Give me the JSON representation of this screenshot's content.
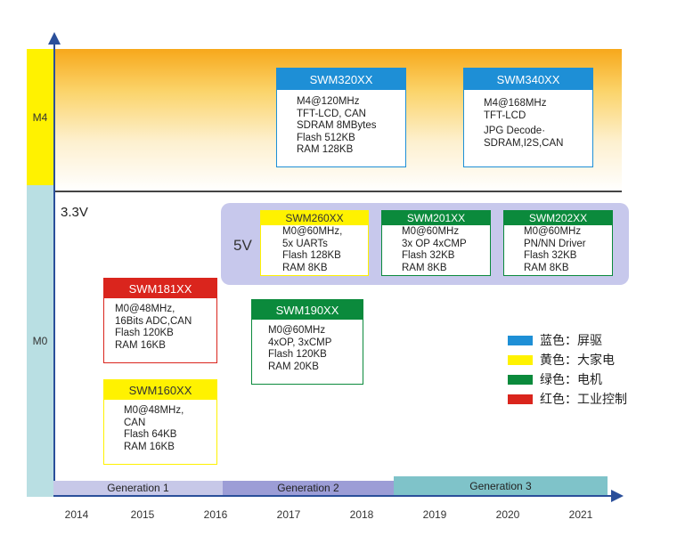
{
  "cores": {
    "m4": "M4",
    "m0": "M0"
  },
  "voltages": {
    "v33": "3.3V",
    "v5": "5V"
  },
  "chips": [
    {
      "id": "swm320",
      "name": "SWM320XX",
      "color": "blue",
      "specs": [
        "M4@120MHz",
        "TFT-LCD, CAN",
        "SDRAM 8MBytes",
        "Flash 512KB",
        "RAM 128KB"
      ]
    },
    {
      "id": "swm340",
      "name": "SWM340XX",
      "color": "blue",
      "specs": [
        "M4@168MHz",
        "TFT-LCD",
        "JPG Decode·",
        "SDRAM,I2S,CAN"
      ]
    },
    {
      "id": "swm260",
      "name": "SWM260XX",
      "color": "yellow",
      "specs": [
        "M0@60MHz,",
        "5x UARTs",
        "Flash 128KB",
        "RAM 8KB"
      ]
    },
    {
      "id": "swm201",
      "name": "SWM201XX",
      "color": "green",
      "specs": [
        "M0@60MHz",
        "3x OP 4xCMP",
        "Flash 32KB",
        "RAM 8KB"
      ]
    },
    {
      "id": "swm202",
      "name": "SWM202XX",
      "color": "green",
      "specs": [
        "M0@60MHz",
        "PN/NN Driver",
        "Flash 32KB",
        "RAM 8KB"
      ]
    },
    {
      "id": "swm181",
      "name": "SWM181XX",
      "color": "red",
      "specs": [
        "M0@48MHz,",
        "16Bits ADC,CAN",
        "Flash 120KB",
        "RAM 16KB"
      ]
    },
    {
      "id": "swm190",
      "name": "SWM190XX",
      "color": "green",
      "specs": [
        "M0@60MHz",
        "4xOP, 3xCMP",
        "Flash 120KB",
        "RAM 20KB"
      ]
    },
    {
      "id": "swm160",
      "name": "SWM160XX",
      "color": "yellow",
      "specs": [
        "M0@48MHz,",
        "CAN",
        "Flash 64KB",
        "RAM 16KB"
      ]
    }
  ],
  "legend": [
    {
      "color": "#1e8fd6",
      "label": "蓝色：屏驱"
    },
    {
      "color": "#fff200",
      "label": "黄色：大家电"
    },
    {
      "color": "#0b8a3c",
      "label": "绿色：电机"
    },
    {
      "color": "#da251d",
      "label": "红色：工业控制"
    }
  ],
  "generations": [
    "Generation 1",
    "Generation 2",
    "Generation 3"
  ],
  "years": [
    "2014",
    "2015",
    "2016",
    "2017",
    "2018",
    "2019",
    "2020",
    "2021"
  ]
}
